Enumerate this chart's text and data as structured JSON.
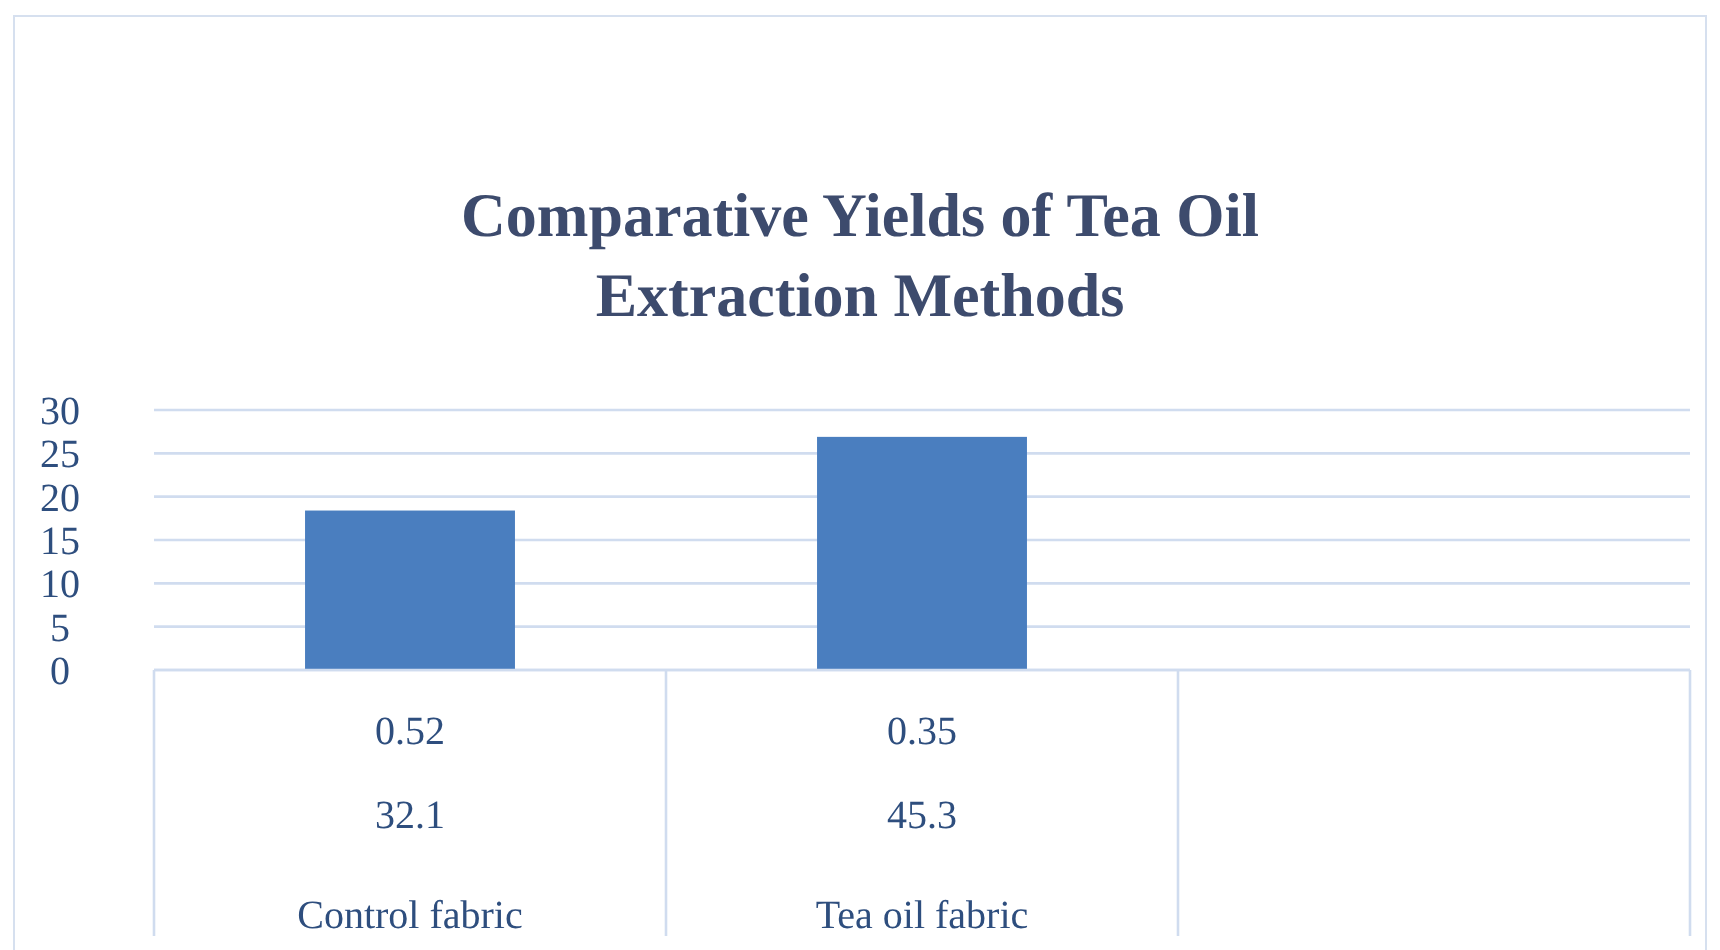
{
  "chart_data": {
    "type": "bar",
    "title": "Comparative Yields of Tea Oil Extraction Methods",
    "categories": [
      "Control fabric",
      "Tea oil fabric",
      null
    ],
    "values": [
      18.4,
      26.9,
      null
    ],
    "color": "#4a7ebf",
    "ylim": [
      0,
      30
    ],
    "yticks": [
      0,
      5,
      10,
      15,
      20,
      25,
      30
    ],
    "grid": "y",
    "annotations": [
      "0.52",
      "0.35",
      "32.1",
      "45.3"
    ]
  }
}
